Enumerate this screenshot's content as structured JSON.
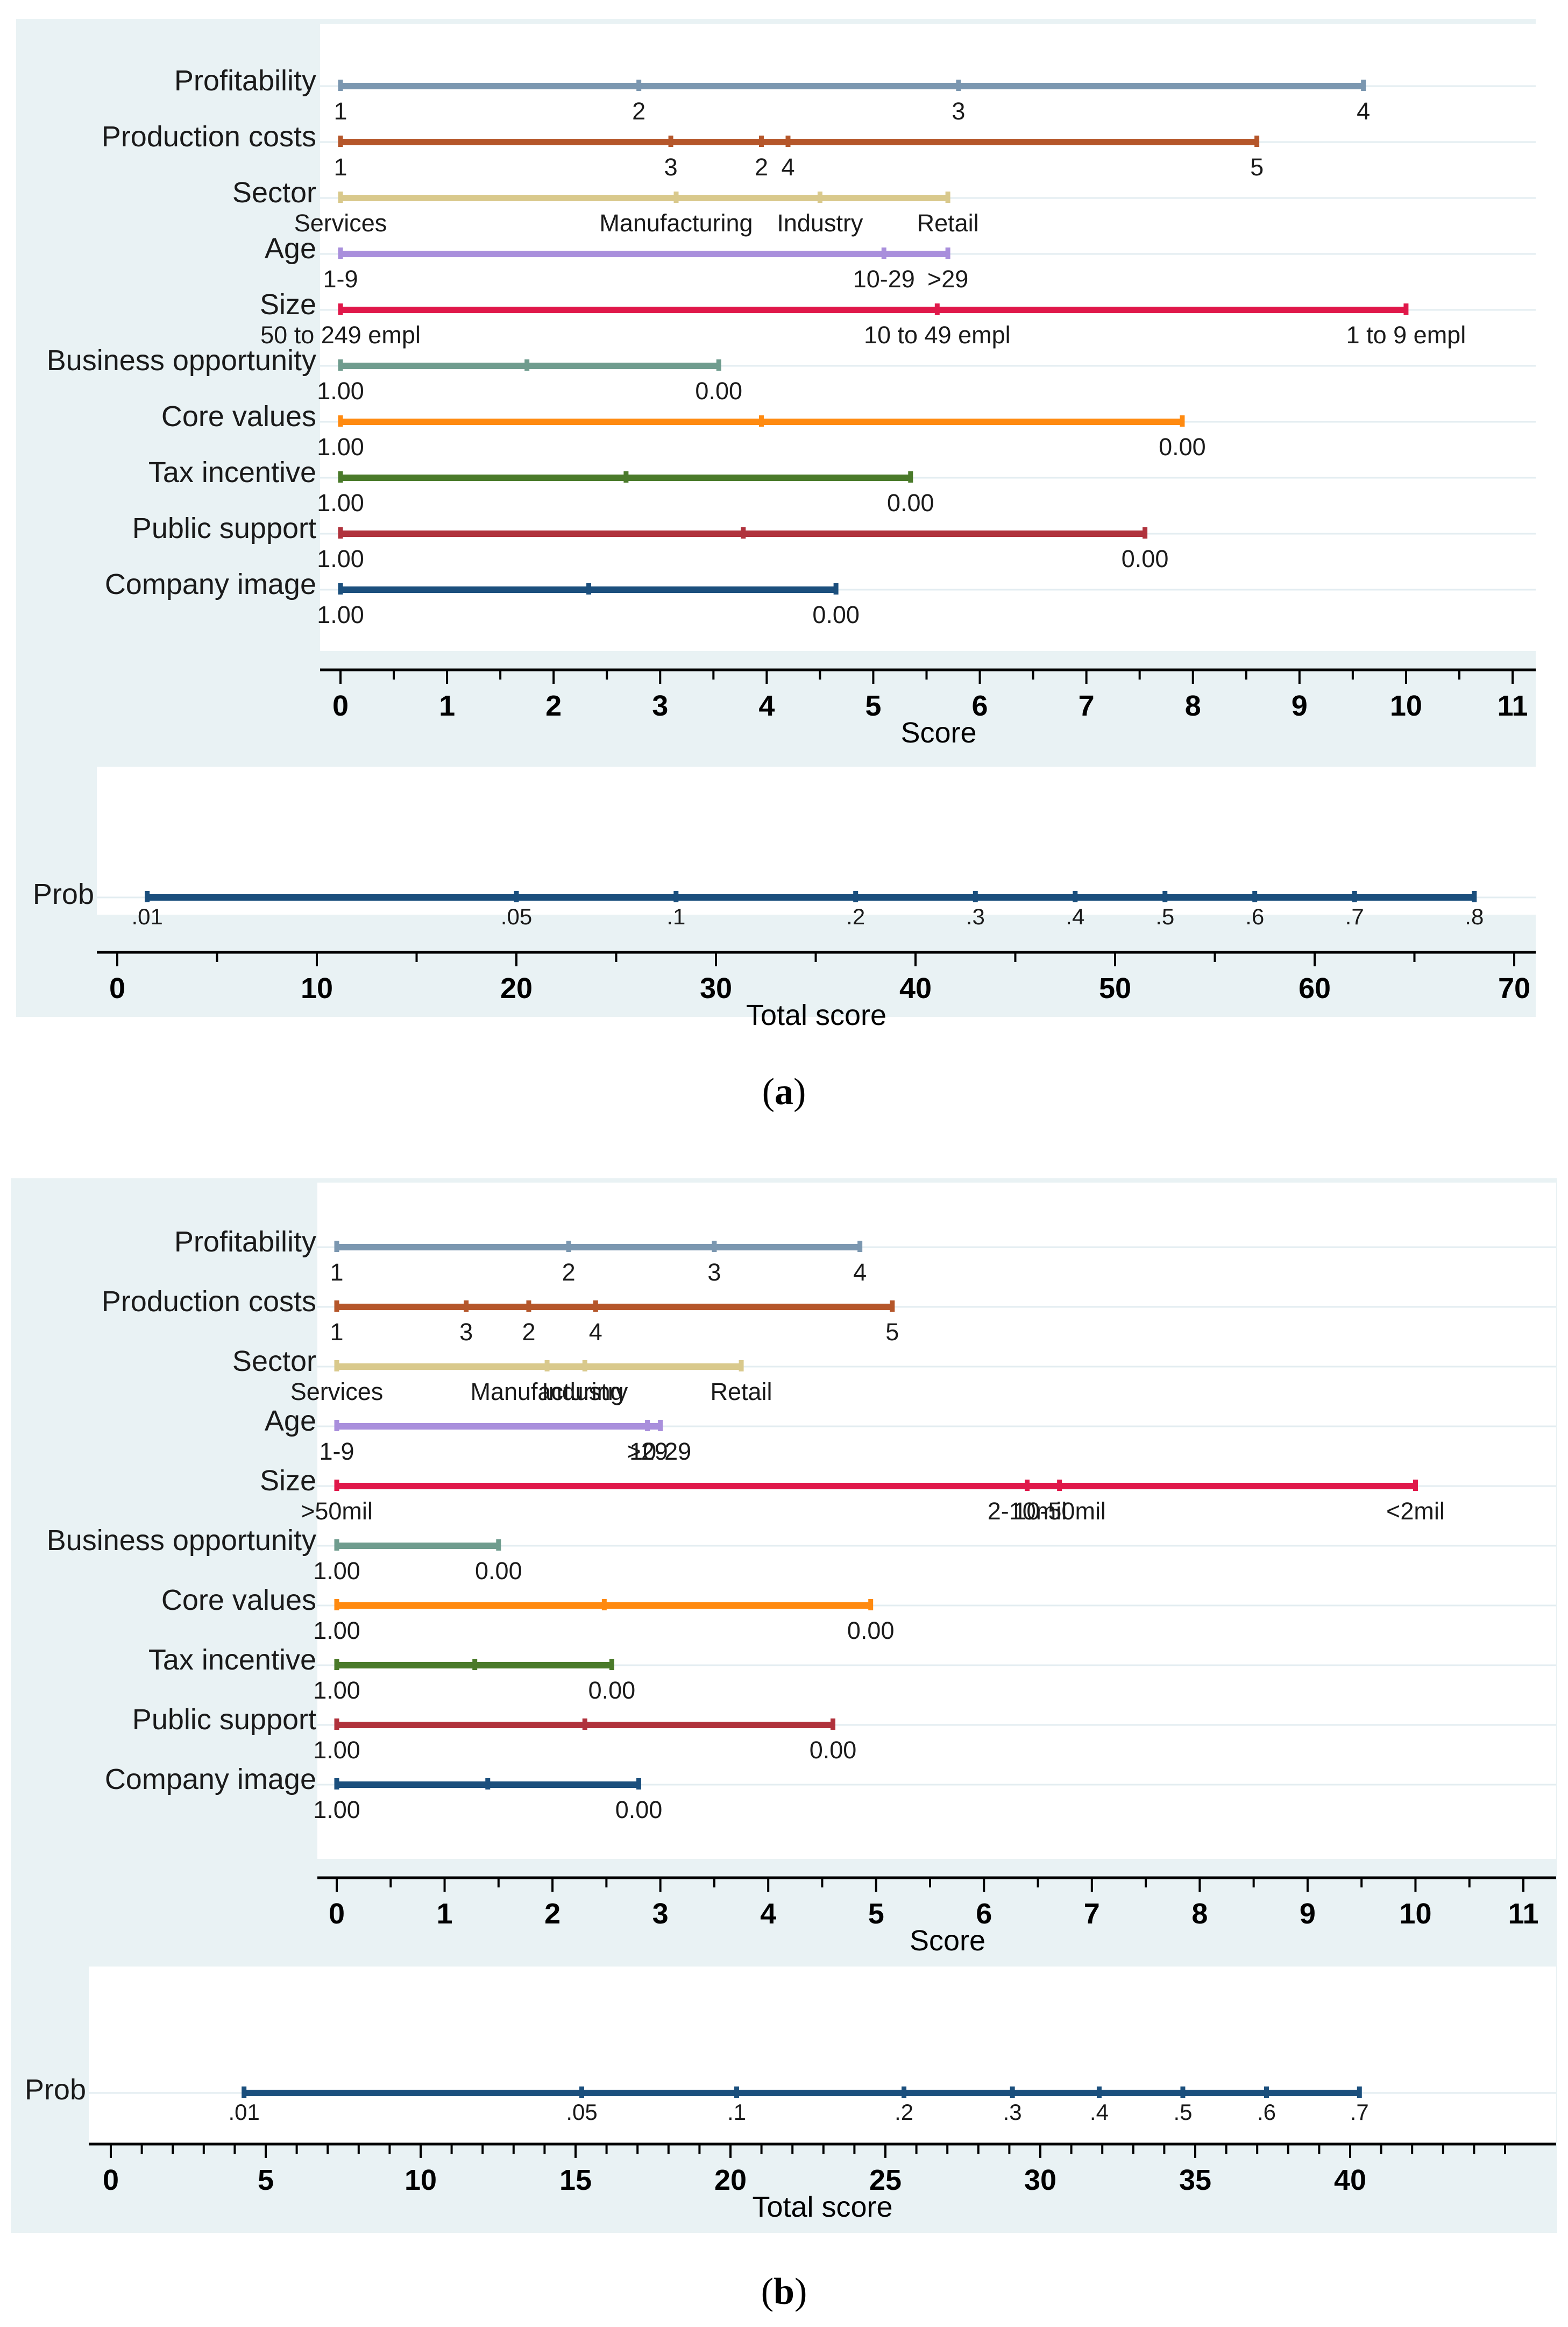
{
  "chart_data": [
    {
      "type": "nomogram",
      "panel": "a",
      "caption": "a",
      "score_axis": {
        "label": "Score",
        "range": [
          0,
          11
        ],
        "major_ticks": [
          0,
          1,
          2,
          3,
          4,
          5,
          6,
          7,
          8,
          9,
          10,
          11
        ]
      },
      "variables": [
        {
          "name": "Profitability",
          "color": "#7b97b0",
          "points": [
            {
              "label": "1",
              "score": 0
            },
            {
              "label": "2",
              "score": 2.8
            },
            {
              "label": "3",
              "score": 5.8
            },
            {
              "label": "4",
              "score": 9.6
            }
          ]
        },
        {
          "name": "Production costs",
          "color": "#b5562a",
          "points": [
            {
              "label": "1",
              "score": 0
            },
            {
              "label": "3",
              "score": 3.1
            },
            {
              "label": "2",
              "score": 3.95
            },
            {
              "label": "4",
              "score": 4.2
            },
            {
              "label": "5",
              "score": 8.6
            }
          ]
        },
        {
          "name": "Sector",
          "color": "#d9c98c",
          "points": [
            {
              "label": "Services",
              "score": 0
            },
            {
              "label": "Manufacturing",
              "score": 3.15
            },
            {
              "label": "Industry",
              "score": 4.5
            },
            {
              "label": "Retail",
              "score": 5.7
            }
          ]
        },
        {
          "name": "Age",
          "color": "#a98fdc",
          "points": [
            {
              "label": "1-9",
              "score": 0
            },
            {
              "label": "10-29",
              "score": 5.1
            },
            {
              "label": ">29",
              "score": 5.7
            }
          ]
        },
        {
          "name": "Size",
          "color": "#e0184a",
          "points": [
            {
              "label": "50 to 249 empl",
              "score": 0
            },
            {
              "label": "10 to 49 empl",
              "score": 5.6
            },
            {
              "label": "1 to 9 empl",
              "score": 10
            }
          ]
        },
        {
          "name": "Business opportunity",
          "color": "#6f9c8e",
          "points": [
            {
              "label": "1.00",
              "score": 0
            },
            {
              "label": "",
              "score": 1.75
            },
            {
              "label": "0.00",
              "score": 3.55
            }
          ]
        },
        {
          "name": "Core values",
          "color": "#ff8a10",
          "points": [
            {
              "label": "1.00",
              "score": 0
            },
            {
              "label": "",
              "score": 3.95
            },
            {
              "label": "0.00",
              "score": 7.9
            }
          ]
        },
        {
          "name": "Tax incentive",
          "color": "#4a7a2a",
          "points": [
            {
              "label": "1.00",
              "score": 0
            },
            {
              "label": "",
              "score": 2.68
            },
            {
              "label": "0.00",
              "score": 5.35
            }
          ]
        },
        {
          "name": "Public support",
          "color": "#b0323c",
          "points": [
            {
              "label": "1.00",
              "score": 0
            },
            {
              "label": "",
              "score": 3.78
            },
            {
              "label": "0.00",
              "score": 7.55
            }
          ]
        },
        {
          "name": "Company image",
          "color": "#1b4f7d",
          "points": [
            {
              "label": "1.00",
              "score": 0
            },
            {
              "label": "",
              "score": 2.33
            },
            {
              "label": "0.00",
              "score": 4.65
            }
          ]
        }
      ],
      "total_axis": {
        "label": "Total score",
        "range": [
          0,
          70
        ],
        "major_ticks": [
          0,
          10,
          20,
          30,
          40,
          50,
          60,
          70
        ],
        "minor_step": 5
      },
      "prob": {
        "label": "Prob",
        "color": "#1b4f7d",
        "line": [
          1.5,
          68
        ],
        "ticks": [
          {
            "label": ".01",
            "total": 1.5
          },
          {
            "label": ".05",
            "total": 20
          },
          {
            "label": ".1",
            "total": 28
          },
          {
            "label": ".2",
            "total": 37
          },
          {
            "label": ".3",
            "total": 43
          },
          {
            "label": ".4",
            "total": 48
          },
          {
            "label": ".5",
            "total": 52.5
          },
          {
            "label": ".6",
            "total": 57
          },
          {
            "label": ".7",
            "total": 62
          },
          {
            "label": ".8",
            "total": 68
          }
        ]
      }
    },
    {
      "type": "nomogram",
      "panel": "b",
      "caption": "b",
      "score_axis": {
        "label": "Score",
        "range": [
          0,
          11
        ],
        "major_ticks": [
          0,
          1,
          2,
          3,
          4,
          5,
          6,
          7,
          8,
          9,
          10,
          11
        ]
      },
      "variables": [
        {
          "name": "Profitability",
          "color": "#7b97b0",
          "points": [
            {
              "label": "1",
              "score": 0
            },
            {
              "label": "2",
              "score": 2.15
            },
            {
              "label": "3",
              "score": 3.5
            },
            {
              "label": "4",
              "score": 4.85
            }
          ]
        },
        {
          "name": "Production costs",
          "color": "#b5562a",
          "points": [
            {
              "label": "1",
              "score": 0
            },
            {
              "label": "3",
              "score": 1.2
            },
            {
              "label": "2",
              "score": 1.78
            },
            {
              "label": "4",
              "score": 2.4
            },
            {
              "label": "5",
              "score": 5.15
            }
          ]
        },
        {
          "name": "Sector",
          "color": "#d9c98c",
          "points": [
            {
              "label": "Services",
              "score": 0
            },
            {
              "label": "Manufacturing",
              "score": 1.95
            },
            {
              "label": "Industry",
              "score": 2.3
            },
            {
              "label": "Retail",
              "score": 3.75
            }
          ]
        },
        {
          "name": "Age",
          "color": "#a98fdc",
          "points": [
            {
              "label": "1-9",
              "score": 0
            },
            {
              "label": ">29",
              "score": 2.88
            },
            {
              "label": "10-29",
              "score": 3.0
            }
          ]
        },
        {
          "name": "Size",
          "color": "#e0184a",
          "points": [
            {
              "label": ">50mil",
              "score": 0
            },
            {
              "label": "2-10mil",
              "score": 6.4
            },
            {
              "label": "10-50mil",
              "score": 6.7
            },
            {
              "label": "<2mil",
              "score": 10
            }
          ]
        },
        {
          "name": "Business opportunity",
          "color": "#6f9c8e",
          "points": [
            {
              "label": "1.00",
              "score": 0
            },
            {
              "label": "0.00",
              "score": 1.5
            }
          ]
        },
        {
          "name": "Core values",
          "color": "#ff8a10",
          "points": [
            {
              "label": "1.00",
              "score": 0
            },
            {
              "label": "",
              "score": 2.48
            },
            {
              "label": "0.00",
              "score": 4.95
            }
          ]
        },
        {
          "name": "Tax incentive",
          "color": "#4a7a2a",
          "points": [
            {
              "label": "1.00",
              "score": 0
            },
            {
              "label": "",
              "score": 1.28
            },
            {
              "label": "0.00",
              "score": 2.55
            }
          ]
        },
        {
          "name": "Public support",
          "color": "#b0323c",
          "points": [
            {
              "label": "1.00",
              "score": 0
            },
            {
              "label": "",
              "score": 2.3
            },
            {
              "label": "0.00",
              "score": 4.6
            }
          ]
        },
        {
          "name": "Company image",
          "color": "#1b4f7d",
          "points": [
            {
              "label": "1.00",
              "score": 0
            },
            {
              "label": "",
              "score": 1.4
            },
            {
              "label": "0.00",
              "score": 2.8
            }
          ]
        }
      ],
      "total_axis": {
        "label": "Total score",
        "range": [
          0,
          45
        ],
        "major_ticks": [
          0,
          5,
          10,
          15,
          20,
          25,
          30,
          35,
          40
        ],
        "minor_step": 1
      },
      "prob": {
        "label": "Prob",
        "color": "#1b4f7d",
        "line": [
          4.3,
          40.3
        ],
        "ticks": [
          {
            "label": ".01",
            "total": 4.3
          },
          {
            "label": ".05",
            "total": 15.2
          },
          {
            "label": ".1",
            "total": 20.2
          },
          {
            "label": ".2",
            "total": 25.6
          },
          {
            "label": ".3",
            "total": 29.1
          },
          {
            "label": ".4",
            "total": 31.9
          },
          {
            "label": ".5",
            "total": 34.6
          },
          {
            "label": ".6",
            "total": 37.3
          },
          {
            "label": ".7",
            "total": 40.3
          }
        ]
      }
    }
  ]
}
